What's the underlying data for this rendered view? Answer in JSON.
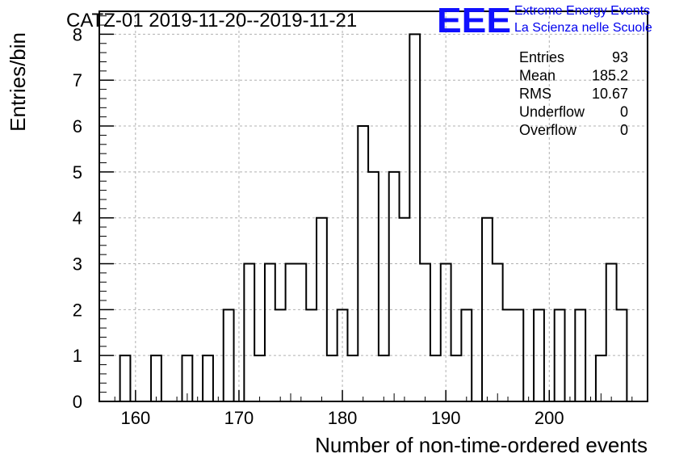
{
  "chart_data": {
    "type": "bar",
    "title": "CATZ-01 2019-11-20--2019-11-21",
    "xlabel": "Number of non-time-ordered events",
    "ylabel": "Entries/bin",
    "xlim": [
      156.5,
      209.5
    ],
    "ylim": [
      0,
      8.5
    ],
    "x_ticks": [
      "160",
      "170",
      "180",
      "190",
      "200"
    ],
    "y_ticks": [
      "0",
      "1",
      "2",
      "3",
      "4",
      "5",
      "6",
      "7",
      "8"
    ],
    "grid": true,
    "bins": [
      {
        "x": 159,
        "value": 1
      },
      {
        "x": 162,
        "value": 1
      },
      {
        "x": 165,
        "value": 1
      },
      {
        "x": 167,
        "value": 1
      },
      {
        "x": 169,
        "value": 2
      },
      {
        "x": 171,
        "value": 3
      },
      {
        "x": 172,
        "value": 1
      },
      {
        "x": 173,
        "value": 3
      },
      {
        "x": 174,
        "value": 2
      },
      {
        "x": 175,
        "value": 3
      },
      {
        "x": 176,
        "value": 3
      },
      {
        "x": 177,
        "value": 2
      },
      {
        "x": 178,
        "value": 4
      },
      {
        "x": 179,
        "value": 1
      },
      {
        "x": 180,
        "value": 2
      },
      {
        "x": 181,
        "value": 1
      },
      {
        "x": 182,
        "value": 6
      },
      {
        "x": 183,
        "value": 5
      },
      {
        "x": 184,
        "value": 1
      },
      {
        "x": 185,
        "value": 5
      },
      {
        "x": 186,
        "value": 4
      },
      {
        "x": 187,
        "value": 8
      },
      {
        "x": 188,
        "value": 3
      },
      {
        "x": 189,
        "value": 1
      },
      {
        "x": 190,
        "value": 3
      },
      {
        "x": 191,
        "value": 1
      },
      {
        "x": 192,
        "value": 2
      },
      {
        "x": 194,
        "value": 4
      },
      {
        "x": 195,
        "value": 3
      },
      {
        "x": 196,
        "value": 2
      },
      {
        "x": 197,
        "value": 2
      },
      {
        "x": 199,
        "value": 2
      },
      {
        "x": 201,
        "value": 2
      },
      {
        "x": 203,
        "value": 2
      },
      {
        "x": 205,
        "value": 1
      },
      {
        "x": 206,
        "value": 3
      },
      {
        "x": 207,
        "value": 2
      }
    ],
    "stats": [
      {
        "label": "Entries",
        "value": "93"
      },
      {
        "label": "Mean",
        "value": "185.2"
      },
      {
        "label": "RMS",
        "value": "10.67"
      },
      {
        "label": "Underflow",
        "value": "0"
      },
      {
        "label": "Overflow",
        "value": "0"
      }
    ],
    "colors": {
      "line": "#000000",
      "grid": "#b0b0b0",
      "logo": "#0000ff"
    }
  },
  "logo": {
    "mark": "EEE",
    "line1": "Extreme Energy Events",
    "line2": "La Scienza nelle Scuole"
  }
}
